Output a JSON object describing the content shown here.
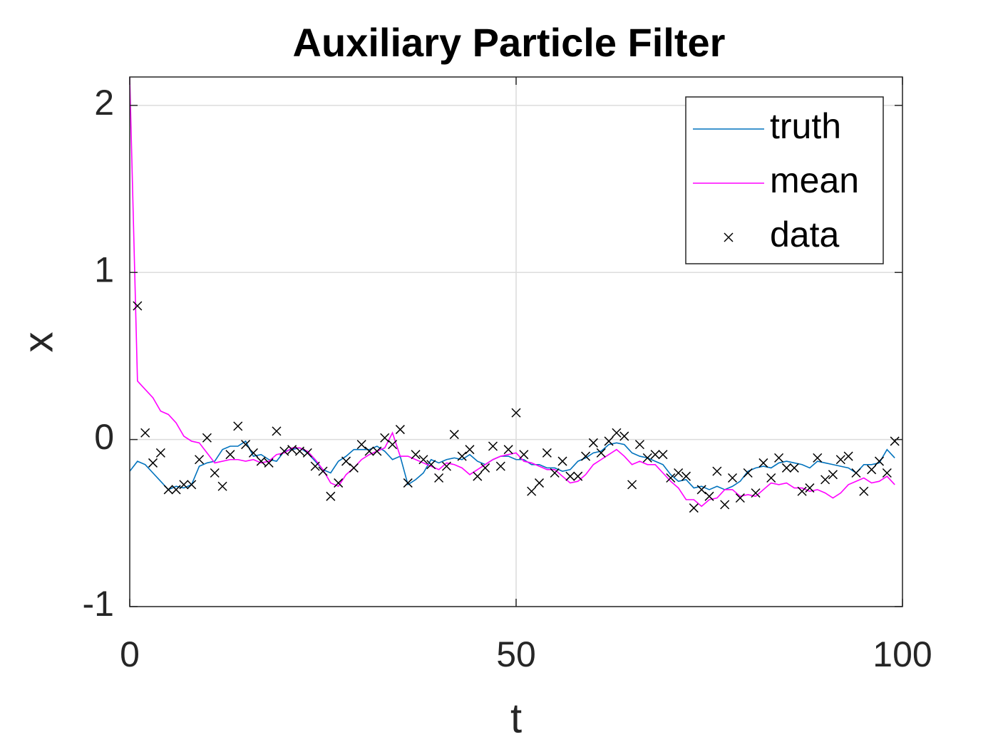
{
  "chart_data": {
    "type": "line",
    "title": "Auxiliary Particle Filter",
    "xlabel": "t",
    "ylabel": "x",
    "xlim": [
      0,
      100
    ],
    "ylim": [
      -1,
      2.17
    ],
    "xticks": [
      0,
      50,
      100
    ],
    "yticks": [
      -1,
      0,
      1,
      2
    ],
    "grid": true,
    "legend": "northeast",
    "x": [
      0,
      1,
      2,
      3,
      4,
      5,
      6,
      7,
      8,
      9,
      10,
      11,
      12,
      13,
      14,
      15,
      16,
      17,
      18,
      19,
      20,
      21,
      22,
      23,
      24,
      25,
      26,
      27,
      28,
      29,
      30,
      31,
      32,
      33,
      34,
      35,
      36,
      37,
      38,
      39,
      40,
      41,
      42,
      43,
      44,
      45,
      46,
      47,
      48,
      49,
      50,
      51,
      52,
      53,
      54,
      55,
      56,
      57,
      58,
      59,
      60,
      61,
      62,
      63,
      64,
      65,
      66,
      67,
      68,
      69,
      70,
      71,
      72,
      73,
      74,
      75,
      76,
      77,
      78,
      79,
      80,
      81,
      82,
      83,
      84,
      85,
      86,
      87,
      88,
      89,
      90,
      91,
      92,
      93,
      94,
      95,
      96,
      97,
      98,
      99
    ],
    "series": [
      {
        "name": "truth",
        "type": "line",
        "color": "#0072bd",
        "values": [
          -0.19,
          -0.13,
          -0.15,
          -0.2,
          -0.25,
          -0.3,
          -0.28,
          -0.29,
          -0.27,
          -0.16,
          -0.14,
          -0.13,
          -0.06,
          -0.04,
          -0.04,
          -0.01,
          -0.1,
          -0.09,
          -0.12,
          -0.13,
          -0.07,
          -0.06,
          -0.05,
          -0.08,
          -0.13,
          -0.18,
          -0.2,
          -0.13,
          -0.1,
          -0.06,
          -0.06,
          -0.06,
          -0.04,
          -0.07,
          -0.12,
          -0.1,
          -0.27,
          -0.24,
          -0.2,
          -0.12,
          -0.14,
          -0.12,
          -0.11,
          -0.12,
          -0.09,
          -0.13,
          -0.15,
          -0.12,
          -0.1,
          -0.1,
          -0.12,
          -0.12,
          -0.15,
          -0.15,
          -0.17,
          -0.17,
          -0.19,
          -0.18,
          -0.13,
          -0.11,
          -0.08,
          -0.07,
          -0.03,
          -0.02,
          -0.03,
          -0.08,
          -0.1,
          -0.11,
          -0.13,
          -0.15,
          -0.21,
          -0.25,
          -0.24,
          -0.29,
          -0.28,
          -0.3,
          -0.28,
          -0.3,
          -0.28,
          -0.25,
          -0.19,
          -0.17,
          -0.16,
          -0.17,
          -0.14,
          -0.13,
          -0.14,
          -0.15,
          -0.17,
          -0.13,
          -0.14,
          -0.15,
          -0.16,
          -0.17,
          -0.2,
          -0.15,
          -0.15,
          -0.14,
          -0.06,
          -0.11
        ]
      },
      {
        "name": "mean",
        "type": "line",
        "color": "#ff00ff",
        "values": [
          2.17,
          0.35,
          0.3,
          0.25,
          0.17,
          0.15,
          0.1,
          0.02,
          -0.01,
          -0.02,
          -0.08,
          -0.14,
          -0.13,
          -0.12,
          -0.12,
          -0.13,
          -0.12,
          -0.14,
          -0.13,
          -0.09,
          -0.08,
          -0.05,
          -0.05,
          -0.07,
          -0.12,
          -0.18,
          -0.26,
          -0.28,
          -0.21,
          -0.17,
          -0.12,
          -0.09,
          -0.07,
          -0.05,
          0.04,
          -0.1,
          -0.1,
          -0.12,
          -0.14,
          -0.16,
          -0.18,
          -0.14,
          -0.15,
          -0.17,
          -0.21,
          -0.18,
          -0.15,
          -0.12,
          -0.1,
          -0.09,
          -0.08,
          -0.13,
          -0.14,
          -0.16,
          -0.18,
          -0.18,
          -0.22,
          -0.26,
          -0.25,
          -0.21,
          -0.15,
          -0.12,
          -0.09,
          -0.06,
          -0.1,
          -0.15,
          -0.13,
          -0.15,
          -0.15,
          -0.2,
          -0.25,
          -0.29,
          -0.36,
          -0.36,
          -0.4,
          -0.36,
          -0.35,
          -0.3,
          -0.3,
          -0.34,
          -0.33,
          -0.34,
          -0.3,
          -0.26,
          -0.27,
          -0.26,
          -0.29,
          -0.29,
          -0.31,
          -0.3,
          -0.32,
          -0.35,
          -0.32,
          -0.27,
          -0.25,
          -0.23,
          -0.26,
          -0.25,
          -0.22,
          -0.27
        ]
      },
      {
        "name": "data",
        "type": "scatter",
        "color": "#000000",
        "x": [
          1,
          2,
          3,
          4,
          5,
          6,
          7,
          8,
          9,
          10,
          11,
          12,
          13,
          14,
          15,
          16,
          17,
          18,
          19,
          20,
          21,
          22,
          23,
          24,
          25,
          26,
          27,
          28,
          29,
          30,
          31,
          32,
          33,
          34,
          35,
          36,
          37,
          38,
          39,
          40,
          41,
          42,
          43,
          44,
          45,
          46,
          47,
          48,
          49,
          50,
          51,
          52,
          53,
          54,
          55,
          56,
          57,
          58,
          59,
          60,
          61,
          62,
          63,
          64,
          65,
          66,
          67,
          68,
          69,
          70,
          71,
          72,
          73,
          74,
          75,
          76,
          77,
          78,
          79,
          80,
          81,
          82,
          83,
          84,
          85,
          86,
          87,
          88,
          89,
          90,
          91,
          92,
          93,
          94,
          95,
          96,
          97,
          98,
          99
        ],
        "values": [
          0.8,
          0.04,
          -0.14,
          -0.08,
          -0.3,
          -0.3,
          -0.27,
          -0.27,
          -0.12,
          0.01,
          -0.2,
          -0.28,
          -0.09,
          0.08,
          -0.03,
          -0.08,
          -0.13,
          -0.14,
          0.05,
          -0.07,
          -0.06,
          -0.07,
          -0.08,
          -0.16,
          -0.19,
          -0.34,
          -0.26,
          -0.13,
          -0.17,
          -0.03,
          -0.07,
          -0.07,
          0.01,
          -0.03,
          0.06,
          -0.26,
          -0.09,
          -0.12,
          -0.15,
          -0.23,
          -0.16,
          0.03,
          -0.1,
          -0.06,
          -0.22,
          -0.17,
          -0.04,
          -0.16,
          -0.06,
          0.16,
          -0.09,
          -0.31,
          -0.26,
          -0.08,
          -0.2,
          -0.13,
          -0.22,
          -0.22,
          -0.1,
          -0.02,
          -0.08,
          -0.01,
          0.04,
          0.02,
          -0.27,
          -0.03,
          -0.11,
          -0.09,
          -0.09,
          -0.23,
          -0.2,
          -0.22,
          -0.41,
          -0.3,
          -0.34,
          -0.19,
          -0.39,
          -0.23,
          -0.35,
          -0.2,
          -0.32,
          -0.14,
          -0.23,
          -0.11,
          -0.17,
          -0.17,
          -0.31,
          -0.29,
          -0.11,
          -0.24,
          -0.21,
          -0.12,
          -0.1,
          -0.2,
          -0.31,
          -0.18,
          -0.13,
          -0.2,
          -0.01
        ]
      }
    ]
  }
}
